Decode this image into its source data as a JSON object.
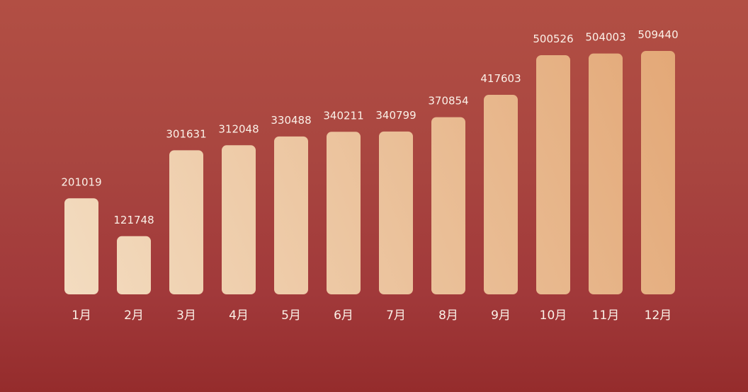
{
  "chart_data": {
    "type": "bar",
    "categories": [
      "1月",
      "2月",
      "3月",
      "4月",
      "5月",
      "6月",
      "7月",
      "8月",
      "9月",
      "10月",
      "11月",
      "12月"
    ],
    "values": [
      201019,
      121748,
      301631,
      312048,
      330488,
      340211,
      340799,
      370854,
      417603,
      500526,
      504003,
      509440
    ],
    "value_labels": [
      "201019",
      "121748",
      "301631",
      "312048",
      "330488",
      "340211",
      "340799",
      "370854",
      "417603",
      "500526",
      "504003",
      "509440"
    ],
    "ylim": [
      0,
      509440
    ],
    "grid": false,
    "legend": "none",
    "colors": {
      "bar_start": "#f3dcc0",
      "bar_end": "#e3a877",
      "text": "#fbf1e8"
    }
  }
}
